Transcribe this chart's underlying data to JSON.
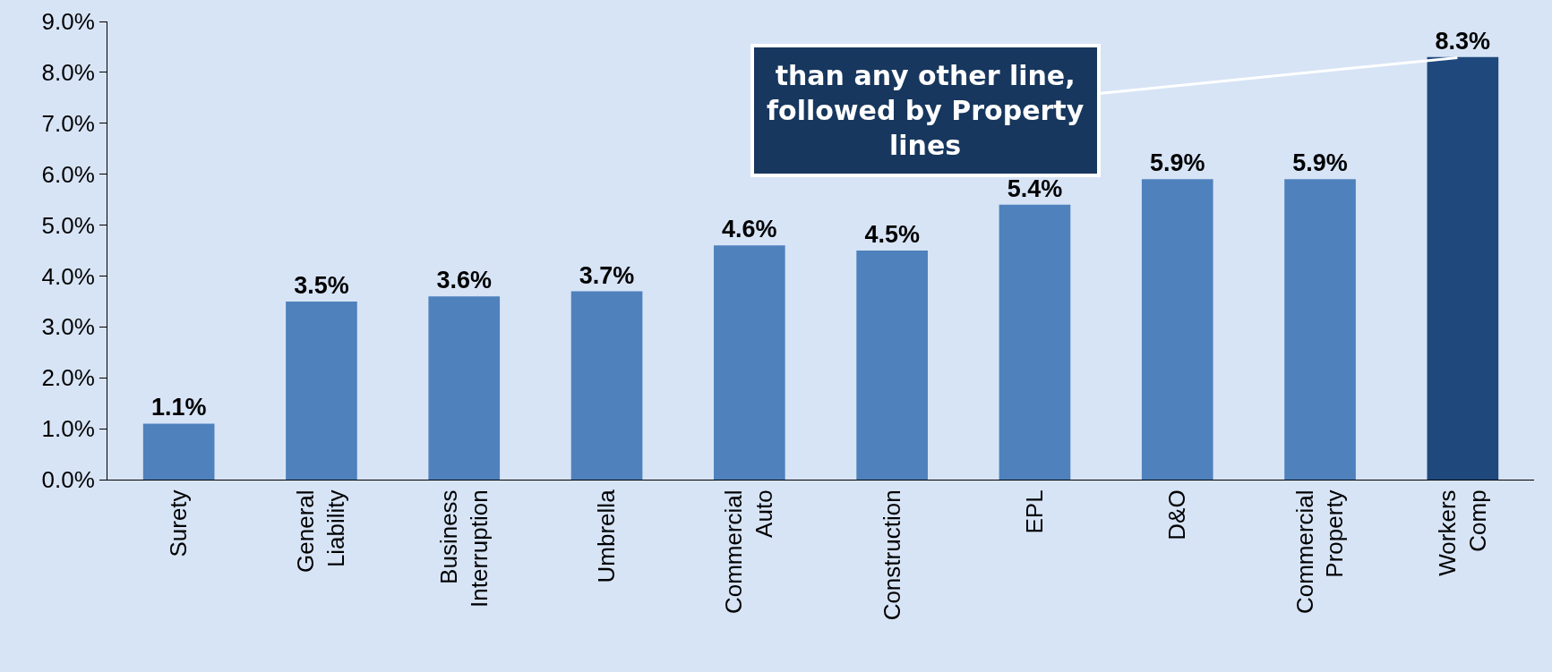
{
  "chart_data": {
    "type": "bar",
    "categories": [
      "Surety",
      "General Liability",
      "Business Interruption",
      "Umbrella",
      "Commercial Auto",
      "Construction",
      "EPL",
      "D&O",
      "Commercial Property",
      "Workers Comp"
    ],
    "values": [
      1.1,
      3.5,
      3.6,
      3.7,
      4.6,
      4.5,
      5.4,
      5.9,
      5.9,
      8.3
    ],
    "colors": [
      "#4f81bd",
      "#4f81bd",
      "#4f81bd",
      "#4f81bd",
      "#4f81bd",
      "#4f81bd",
      "#4f81bd",
      "#4f81bd",
      "#4f81bd",
      "#1f497d"
    ],
    "value_labels": [
      "1.1%",
      "3.5%",
      "3.6%",
      "3.7%",
      "4.6%",
      "4.5%",
      "5.4%",
      "5.9%",
      "5.9%",
      "8.3%"
    ],
    "ylim": [
      0,
      9
    ],
    "yticks": [
      {
        "value": 0,
        "label": "0.0%"
      },
      {
        "value": 1,
        "label": "1.0%"
      },
      {
        "value": 2,
        "label": "2.0%"
      },
      {
        "value": 3,
        "label": "3.0%"
      },
      {
        "value": 4,
        "label": "4.0%"
      },
      {
        "value": 5,
        "label": "5.0%"
      },
      {
        "value": 6,
        "label": "6.0%"
      },
      {
        "value": 7,
        "label": "7.0%"
      },
      {
        "value": 8,
        "label": "8.0%"
      },
      {
        "value": 9,
        "label": "9.0%"
      }
    ],
    "annotations": [
      {
        "text": "than any other line,\nfollowed by Property\nlines",
        "x": "Workers Comp",
        "y": 8.3
      }
    ],
    "grid": false
  }
}
